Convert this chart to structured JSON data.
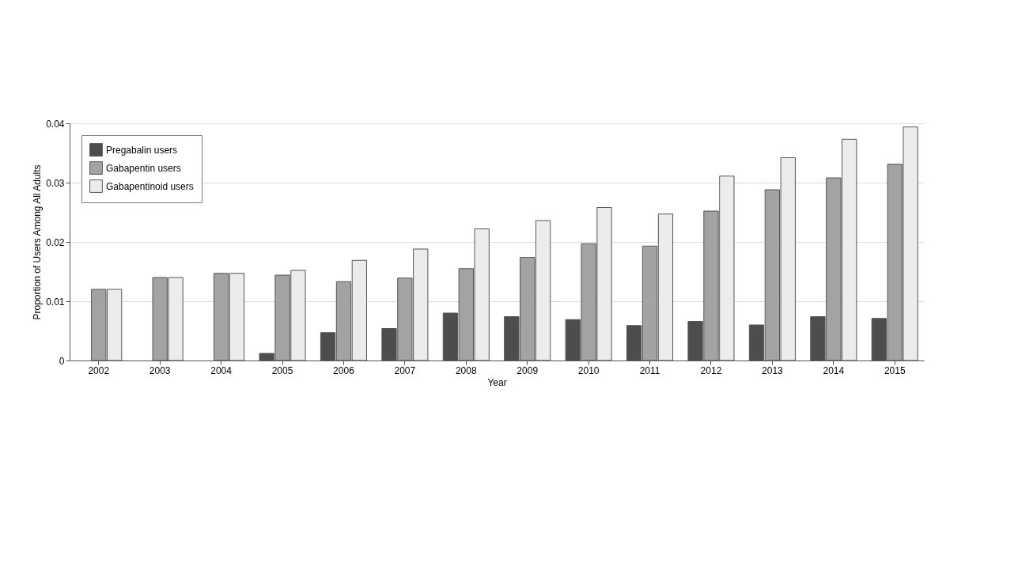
{
  "chart_data": {
    "type": "bar",
    "xlabel": "Year",
    "ylabel": "Proportion of Users Among All Adults",
    "categories": [
      "2002",
      "2003",
      "2004",
      "2005",
      "2006",
      "2007",
      "2008",
      "2009",
      "2010",
      "2011",
      "2012",
      "2013",
      "2014",
      "2015"
    ],
    "series": [
      {
        "name": "Pregabalin users",
        "color": "#4d4d4d",
        "values": [
          null,
          null,
          null,
          0.0012,
          0.0047,
          0.0054,
          0.008,
          0.0074,
          0.0069,
          0.0059,
          0.0066,
          0.006,
          0.0074,
          0.0071
        ]
      },
      {
        "name": "Gabapentin users",
        "color": "#a3a3a3",
        "values": [
          0.012,
          0.014,
          0.0147,
          0.0144,
          0.0133,
          0.0139,
          0.0155,
          0.0174,
          0.0197,
          0.0193,
          0.0252,
          0.0288,
          0.0308,
          0.0331
        ]
      },
      {
        "name": "Gabapentinoid users",
        "color": "#ececec",
        "values": [
          0.012,
          0.014,
          0.0147,
          0.0152,
          0.0169,
          0.0188,
          0.0222,
          0.0236,
          0.0258,
          0.0247,
          0.0311,
          0.0342,
          0.0373,
          0.0394
        ]
      }
    ],
    "ylim": [
      0,
      0.04
    ],
    "yticks": [
      0,
      0.01,
      0.02,
      0.03,
      0.04
    ],
    "grid": "y",
    "legend": "top left"
  }
}
